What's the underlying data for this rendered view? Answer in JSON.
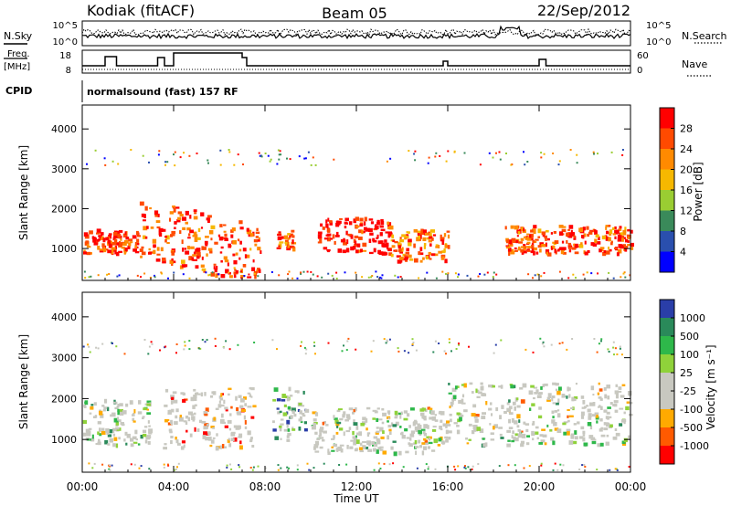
{
  "header": {
    "station": "Kodiak (fitACF)",
    "beam": "Beam 05",
    "date": "22/Sep/2012"
  },
  "strip_labels": {
    "nsky": "N.Sky",
    "nsearch": "N.Search",
    "freq_line1": "Freq.",
    "freq_line2": "[MHz]",
    "nave": "Nave",
    "cpid": "CPID",
    "cpid_value": "normalsound (fast) 157 RF"
  },
  "strip_ticks": {
    "noise_left": [
      "10^5",
      "10^0"
    ],
    "noise_right": [
      "10^5",
      "10^0"
    ],
    "freq_left": [
      "18",
      "8"
    ],
    "nave_right": [
      "60",
      "0"
    ]
  },
  "chart_data": [
    {
      "type": "heatmap",
      "name": "power",
      "ylabel": "Slant Range [km]",
      "yticks": [
        "4000",
        "3000",
        "2000",
        "1000"
      ],
      "ylim": [
        200,
        4600
      ],
      "colorbar": {
        "label": "Power [dB]",
        "ticks": [
          "28",
          "24",
          "20",
          "16",
          "12",
          "8",
          "4"
        ],
        "colors": [
          "#ff0000",
          "#ff4a00",
          "#ff8a00",
          "#f6b800",
          "#9acd32",
          "#3a8a5a",
          "#2a4fae",
          "#0000ff"
        ]
      },
      "bands": [
        {
          "t0": 0.0,
          "t1": 2.5,
          "r0": 900,
          "r1": 1500,
          "level": 0.9
        },
        {
          "t0": 2.5,
          "t1": 7.8,
          "r0": 800,
          "r1": 2300,
          "level": 0.85
        },
        {
          "t0": 8.5,
          "t1": 9.2,
          "r0": 1000,
          "r1": 1500,
          "level": 0.8
        },
        {
          "t0": 10.3,
          "t1": 13.5,
          "r0": 900,
          "r1": 1800,
          "level": 0.95
        },
        {
          "t0": 13.5,
          "t1": 16.0,
          "r0": 700,
          "r1": 1500,
          "level": 0.75
        },
        {
          "t0": 18.5,
          "t1": 24.0,
          "r0": 900,
          "r1": 1600,
          "level": 0.85
        }
      ]
    },
    {
      "type": "heatmap",
      "name": "velocity",
      "ylabel": "Slant Range [km]",
      "xlabel": "Time UT",
      "xticks": [
        "00:00",
        "04:00",
        "08:00",
        "12:00",
        "16:00",
        "20:00",
        "00:00"
      ],
      "yticks": [
        "4000",
        "3000",
        "2000",
        "1000"
      ],
      "ylim": [
        200,
        4600
      ],
      "colorbar": {
        "label": "Velocity [m s⁻¹]",
        "ticks": [
          "1000",
          "500",
          "100",
          "25",
          "-25",
          "-100",
          "-500",
          "-1000"
        ],
        "colors": [
          "#2a3ea8",
          "#2a8a5a",
          "#2eb84a",
          "#8fd23a",
          "#c8c8c0",
          "#c8c8c0",
          "#ffaa00",
          "#ff5a00",
          "#ff0000"
        ]
      },
      "bands": [
        {
          "t0": 0.0,
          "t1": 3.0,
          "r0": 900,
          "r1": 2000,
          "level": 0.45
        },
        {
          "t0": 3.5,
          "t1": 7.5,
          "r0": 800,
          "r1": 2300,
          "level": 0.75
        },
        {
          "t0": 8.3,
          "t1": 9.8,
          "r0": 1000,
          "r1": 2300,
          "level": 0.3
        },
        {
          "t0": 10.0,
          "t1": 16.0,
          "r0": 700,
          "r1": 1800,
          "level": 0.5
        },
        {
          "t0": 16.0,
          "t1": 24.0,
          "r0": 900,
          "r1": 2400,
          "level": 0.5
        }
      ]
    }
  ],
  "time_axis": {
    "xlabel": "Time UT",
    "xticks": [
      "00:00",
      "04:00",
      "08:00",
      "12:00",
      "16:00",
      "20:00",
      "00:00"
    ]
  },
  "colors": {
    "axis": "#000000",
    "velocity_gray": "#c8c8c0"
  }
}
